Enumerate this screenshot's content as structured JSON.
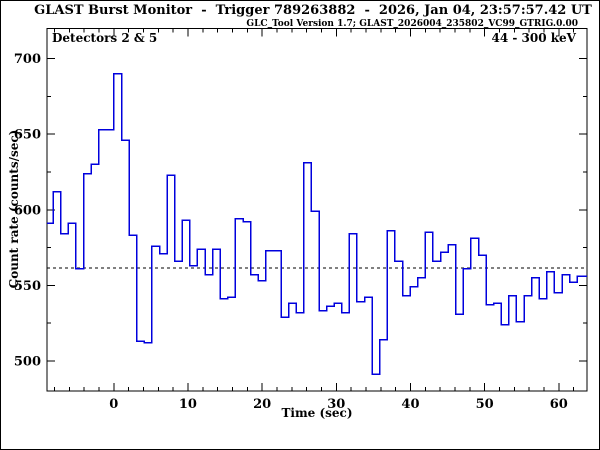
{
  "header": {
    "title": "GLAST Burst Monitor  -  Trigger 789263882  -  2026, Jan 04, 23:57:57.42 UT",
    "subtitle": "GLC_Tool Version 1.7; GLAST_2026004_235802_VC99_GTRIG.0.00"
  },
  "plot": {
    "detectors_label": "Detectors 2 & 5",
    "energy_label": "44 - 300 keV",
    "x_axis_label": "Time (sec)",
    "y_axis_label": "Count rate (counts/sec)"
  },
  "colors": {
    "line": "#0000dd",
    "axis": "#000000",
    "background": "#ffffff"
  },
  "chart_data": {
    "type": "line",
    "subtype": "step-histogram",
    "title": "GLAST Burst Monitor - Trigger 789263882 - 2026, Jan 04, 23:57:57.42 UT",
    "xlabel": "Time (sec)",
    "ylabel": "Count rate (counts/sec)",
    "xlim": [
      -9.0,
      63.8
    ],
    "ylim": [
      480,
      720
    ],
    "x_major_ticks": [
      0,
      10,
      20,
      30,
      40,
      50,
      60
    ],
    "x_minor_step": 2,
    "y_major_ticks": [
      500,
      550,
      600,
      650,
      700
    ],
    "y_minor_ticks": [
      525,
      575,
      625,
      675
    ],
    "grid": false,
    "legend": false,
    "background_level_dashed": 561.5,
    "bin_start": -9.2,
    "bin_width": 1.024,
    "counts": [
      591,
      612,
      584,
      591,
      561,
      624,
      630,
      653,
      653,
      690,
      646,
      583,
      513,
      512,
      576,
      571,
      623,
      566,
      593,
      563,
      574,
      557,
      574,
      541,
      542,
      594,
      592,
      557,
      553,
      573,
      573,
      529,
      538,
      532,
      631,
      599,
      533,
      536,
      538,
      532,
      584,
      539,
      542,
      491,
      514,
      586,
      566,
      543,
      549,
      555,
      585,
      566,
      572,
      577,
      531,
      561,
      581,
      570,
      537,
      538,
      524,
      543,
      526,
      543,
      555,
      541,
      559,
      545,
      557,
      552,
      556
    ]
  }
}
